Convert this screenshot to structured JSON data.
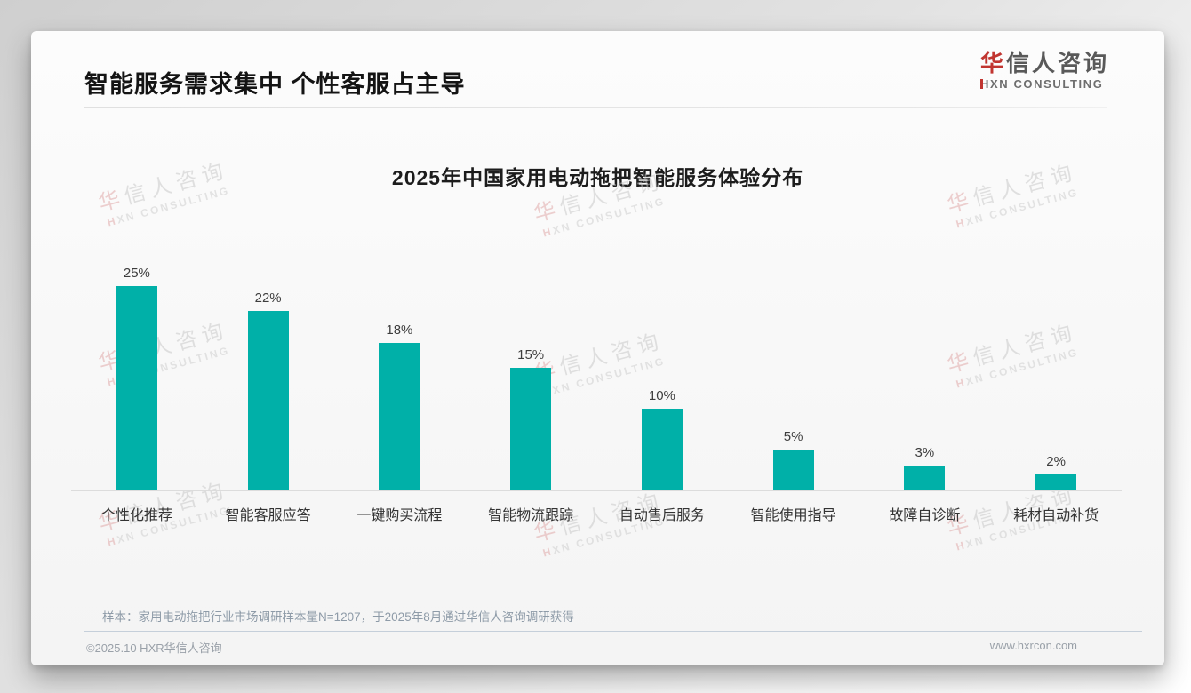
{
  "header": {
    "title": "智能服务需求集中 个性客服占主导",
    "logo": {
      "cn": "华信人咨询",
      "en": "HXN CONSULTING"
    }
  },
  "chart_data": {
    "type": "bar",
    "title": "2025年中国家用电动拖把智能服务体验分布",
    "categories": [
      "个性化推荐",
      "智能客服应答",
      "一键购买流程",
      "智能物流跟踪",
      "自动售后服务",
      "智能使用指导",
      "故障自诊断",
      "耗材自动补货"
    ],
    "values": [
      25,
      22,
      18,
      15,
      10,
      5,
      3,
      2
    ],
    "unit": "%",
    "bar_color": "#00b0a8",
    "ylim": [
      0,
      27
    ],
    "grid": false,
    "legend": "none",
    "value_labels_shown": true
  },
  "watermark": {
    "cn": "华信人咨询",
    "en": "HXN CONSULTING"
  },
  "footnote": "样本：家用电动拖把行业市场调研样本量N=1207，于2025年8月通过华信人咨询调研获得",
  "footer": {
    "copyright": "©2025.10 HXR华信人咨询",
    "website": "www.hxrcon.com"
  },
  "colors": {
    "bar_teal": "#00b0a8",
    "logo_red": "#c13530",
    "footnote_blue_gray": "#8e9ba8"
  }
}
